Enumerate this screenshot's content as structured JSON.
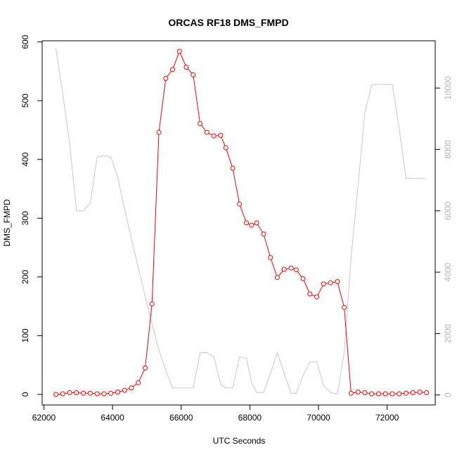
{
  "chart_data": {
    "type": "line",
    "title": "ORCAS RF18 DMS_FMPD",
    "xlabel": "UTC Seconds",
    "ylabel": "DMS_FMPD",
    "xlim": [
      61950,
      73400
    ],
    "ylim": [
      -18,
      602
    ],
    "y2lim": [
      -327,
      11540
    ],
    "grid": false,
    "legend": "none",
    "x_ticks": [
      62000,
      64000,
      66000,
      68000,
      70000,
      72000
    ],
    "y_ticks": [
      0,
      100,
      200,
      300,
      400,
      500,
      600
    ],
    "y2_ticks": [
      0,
      2000,
      4000,
      6000,
      8000,
      10000
    ],
    "series": [
      {
        "axis": "left",
        "style": "line+points",
        "color": "#ff0000",
        "x": [
          62350,
          62550,
          62750,
          62950,
          63150,
          63350,
          63550,
          63750,
          63950,
          64150,
          64350,
          64550,
          64750,
          64950,
          65150,
          65350,
          65550,
          65750,
          65950,
          66150,
          66350,
          66550,
          66750,
          66950,
          67150,
          67300,
          67500,
          67700,
          67900,
          68050,
          68200,
          68400,
          68600,
          68800,
          69000,
          69200,
          69350,
          69550,
          69750,
          69950,
          70150,
          70350,
          70550,
          70750,
          70950,
          71150,
          71350,
          71550,
          71750,
          71950,
          72150,
          72350,
          72550,
          72750,
          72950,
          73150
        ],
        "y": [
          0,
          1,
          3,
          3,
          2,
          2,
          1,
          1,
          2,
          4,
          7,
          11,
          20,
          45,
          154,
          446,
          538,
          553,
          584,
          557,
          544,
          461,
          446,
          440,
          441,
          420,
          385,
          324,
          292,
          288,
          292,
          273,
          233,
          199,
          213,
          215,
          212,
          197,
          171,
          166,
          188,
          190,
          192,
          148,
          2,
          4,
          3,
          1,
          1,
          1,
          1,
          1,
          2,
          3,
          4,
          3
        ]
      },
      {
        "axis": "right",
        "style": "line",
        "color": "#c8c8c8",
        "x": [
          62350,
          62550,
          62750,
          62950,
          63150,
          63350,
          63550,
          63750,
          63950,
          64150,
          64350,
          64550,
          64750,
          64950,
          65150,
          65350,
          65550,
          65750,
          65950,
          66150,
          66350,
          66550,
          66750,
          66950,
          67150,
          67300,
          67500,
          67700,
          67900,
          68050,
          68200,
          68400,
          68600,
          68800,
          69000,
          69200,
          69350,
          69550,
          69750,
          69950,
          70150,
          70350,
          70550,
          70750,
          70950,
          71150,
          71350,
          71550,
          71750,
          71950,
          72150,
          72350,
          72550,
          72750,
          72950,
          73150
        ],
        "y": [
          11300,
          9800,
          8200,
          6000,
          6000,
          6250,
          7750,
          7800,
          7750,
          7100,
          6050,
          5100,
          4150,
          3200,
          2320,
          1460,
          800,
          230,
          230,
          230,
          230,
          1380,
          1380,
          1240,
          350,
          230,
          230,
          1240,
          1200,
          400,
          80,
          80,
          700,
          1380,
          700,
          50,
          50,
          630,
          1070,
          1080,
          300,
          80,
          30,
          1380,
          4500,
          6800,
          9200,
          10100,
          10120,
          10120,
          10120,
          8700,
          7060,
          7060,
          7050,
          7050
        ]
      }
    ]
  }
}
